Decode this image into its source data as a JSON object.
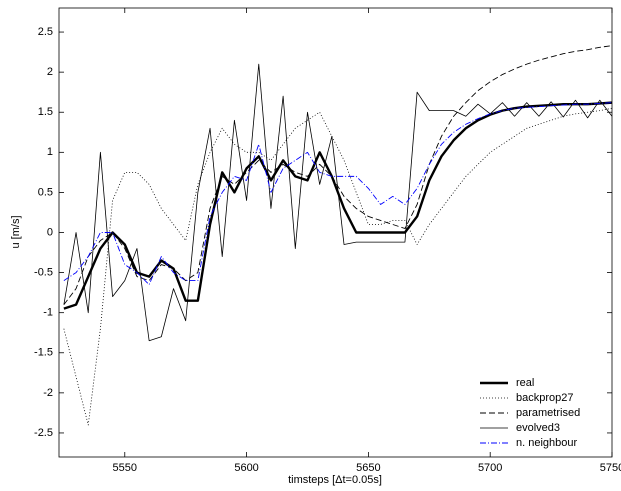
{
  "chart_data": {
    "type": "line",
    "xlabel": "timsteps [Δt=0.05s]",
    "ylabel": "u [m/s]",
    "x": [
      5525,
      5530,
      5535,
      5540,
      5545,
      5550,
      5555,
      5560,
      5565,
      5570,
      5575,
      5580,
      5585,
      5590,
      5595,
      5600,
      5605,
      5610,
      5615,
      5620,
      5625,
      5630,
      5635,
      5640,
      5645,
      5650,
      5655,
      5660,
      5665,
      5670,
      5675,
      5680,
      5685,
      5690,
      5695,
      5700,
      5705,
      5710,
      5715,
      5720,
      5725,
      5730,
      5735,
      5740,
      5745,
      5750
    ],
    "series": [
      {
        "name": "real",
        "color": "#000000",
        "linewidth": 2.4,
        "linestyle": "solid",
        "values": [
          -0.95,
          -0.9,
          -0.55,
          -0.2,
          0.0,
          -0.15,
          -0.5,
          -0.55,
          -0.35,
          -0.45,
          -0.85,
          -0.85,
          0.1,
          0.75,
          0.5,
          0.8,
          0.95,
          0.65,
          0.9,
          0.7,
          0.65,
          1.0,
          0.7,
          0.3,
          0.0,
          0.0,
          0.0,
          0.0,
          0.0,
          0.2,
          0.65,
          0.95,
          1.15,
          1.3,
          1.4,
          1.47,
          1.52,
          1.55,
          1.57,
          1.58,
          1.59,
          1.6,
          1.6,
          1.6,
          1.61,
          1.62
        ]
      },
      {
        "name": "backprop27",
        "color": "#000000",
        "linewidth": 0.8,
        "linestyle": "dotted",
        "values": [
          -1.2,
          -1.8,
          -2.4,
          -1.2,
          0.4,
          0.75,
          0.75,
          0.6,
          0.3,
          0.1,
          -0.1,
          0.6,
          1.0,
          1.3,
          1.1,
          1.0,
          1.0,
          0.9,
          1.1,
          1.3,
          1.4,
          1.5,
          1.2,
          0.9,
          0.5,
          0.1,
          0.1,
          0.15,
          0.15,
          -0.15,
          0.1,
          0.3,
          0.5,
          0.7,
          0.85,
          1.0,
          1.1,
          1.2,
          1.3,
          1.35,
          1.4,
          1.45,
          1.48,
          1.5,
          1.52,
          1.55
        ]
      },
      {
        "name": "parametrised",
        "color": "#000000",
        "linewidth": 0.9,
        "linestyle": "dashed",
        "values": [
          -0.9,
          -0.7,
          -0.3,
          -0.1,
          0.0,
          -0.2,
          -0.55,
          -0.6,
          -0.4,
          -0.45,
          -0.6,
          -0.5,
          0.3,
          0.7,
          0.6,
          0.75,
          0.9,
          0.75,
          0.85,
          0.75,
          0.7,
          0.85,
          0.7,
          0.45,
          0.3,
          0.2,
          0.15,
          0.1,
          0.05,
          0.35,
          0.85,
          1.2,
          1.45,
          1.62,
          1.77,
          1.88,
          1.97,
          2.04,
          2.1,
          2.15,
          2.19,
          2.23,
          2.26,
          2.28,
          2.31,
          2.33
        ]
      },
      {
        "name": "evolved3",
        "color": "#000000",
        "linewidth": 0.8,
        "linestyle": "solid",
        "values": [
          -0.9,
          0.0,
          -1.0,
          1.0,
          -0.8,
          -0.6,
          -0.2,
          -1.35,
          -1.3,
          -0.7,
          -1.1,
          0.5,
          1.3,
          -0.3,
          1.4,
          0.4,
          2.1,
          0.3,
          1.7,
          -0.2,
          1.5,
          0.6,
          1.2,
          -0.15,
          -0.12,
          -0.12,
          -0.12,
          -0.12,
          -0.12,
          1.75,
          1.52,
          1.52,
          1.52,
          1.45,
          1.6,
          1.48,
          1.62,
          1.45,
          1.62,
          1.45,
          1.63,
          1.44,
          1.65,
          1.43,
          1.65,
          1.45
        ]
      },
      {
        "name": "n. neighbour",
        "color": "#0000ff",
        "linewidth": 0.9,
        "linestyle": "dashdot",
        "values": [
          -0.6,
          -0.5,
          -0.3,
          0.0,
          0.0,
          -0.4,
          -0.5,
          -0.65,
          -0.3,
          -0.5,
          -0.6,
          -0.6,
          0.2,
          0.5,
          0.7,
          0.65,
          1.1,
          0.5,
          0.8,
          0.9,
          1.0,
          0.75,
          0.7,
          0.7,
          0.7,
          0.55,
          0.35,
          0.45,
          0.35,
          0.55,
          0.85,
          1.1,
          1.25,
          1.35,
          1.42,
          1.48,
          1.52,
          1.55,
          1.56,
          1.57,
          1.58,
          1.59,
          1.6,
          1.6,
          1.61,
          1.62
        ]
      }
    ],
    "xlim": [
      5523,
      5750
    ],
    "xticks": [
      5550,
      5600,
      5650,
      5700,
      5750
    ],
    "ylim": [
      -2.8,
      2.8
    ],
    "yticks": [
      -2.5,
      -2,
      -1.5,
      -1,
      -0.5,
      0,
      0.5,
      1,
      1.5,
      2,
      2.5
    ],
    "grid": false,
    "legend": "lower right"
  }
}
